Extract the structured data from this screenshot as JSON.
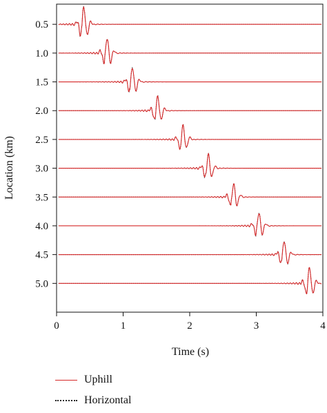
{
  "chart_data": {
    "type": "line",
    "xlabel": "Time (s)",
    "ylabel": "Location (km)",
    "xlim": [
      0,
      4
    ],
    "ylim": [
      5.5,
      0.15
    ],
    "x_ticks": [
      0,
      1,
      2,
      3,
      4
    ],
    "y_ticks": [
      0.5,
      1.0,
      1.5,
      2.0,
      2.5,
      3.0,
      3.5,
      4.0,
      4.5,
      5.0
    ],
    "y_tick_labels": [
      "0.5",
      "1.0",
      "1.5",
      "2.0",
      "2.5",
      "3.0",
      "3.5",
      "4.0",
      "4.5",
      "5.0"
    ],
    "grid": false,
    "legend_position": "bottom-left",
    "series": [
      {
        "name": "Uphill",
        "style": "solid",
        "color": "#d62728"
      },
      {
        "name": "Horizontal",
        "style": "dotted",
        "color": "#222222"
      }
    ],
    "traces": [
      {
        "location": 0.5,
        "arrival_time": 0.38,
        "peak_time": 0.41,
        "peak_amplitude": 0.45
      },
      {
        "location": 1.0,
        "arrival_time": 0.72,
        "peak_time": 0.76,
        "peak_amplitude": 0.4
      },
      {
        "location": 1.5,
        "arrival_time": 1.1,
        "peak_time": 1.14,
        "peak_amplitude": 0.38
      },
      {
        "location": 2.0,
        "arrival_time": 1.48,
        "peak_time": 1.52,
        "peak_amplitude": 0.38
      },
      {
        "location": 2.5,
        "arrival_time": 1.86,
        "peak_time": 1.9,
        "peak_amplitude": 0.36
      },
      {
        "location": 3.0,
        "arrival_time": 2.24,
        "peak_time": 2.28,
        "peak_amplitude": 0.36
      },
      {
        "location": 3.5,
        "arrival_time": 2.62,
        "peak_time": 2.66,
        "peak_amplitude": 0.35
      },
      {
        "location": 4.0,
        "arrival_time": 3.0,
        "peak_time": 3.04,
        "peak_amplitude": 0.35
      },
      {
        "location": 4.5,
        "arrival_time": 3.38,
        "peak_time": 3.42,
        "peak_amplitude": 0.36
      },
      {
        "location": 5.0,
        "arrival_time": 3.76,
        "peak_time": 3.8,
        "peak_amplitude": 0.42
      }
    ]
  }
}
